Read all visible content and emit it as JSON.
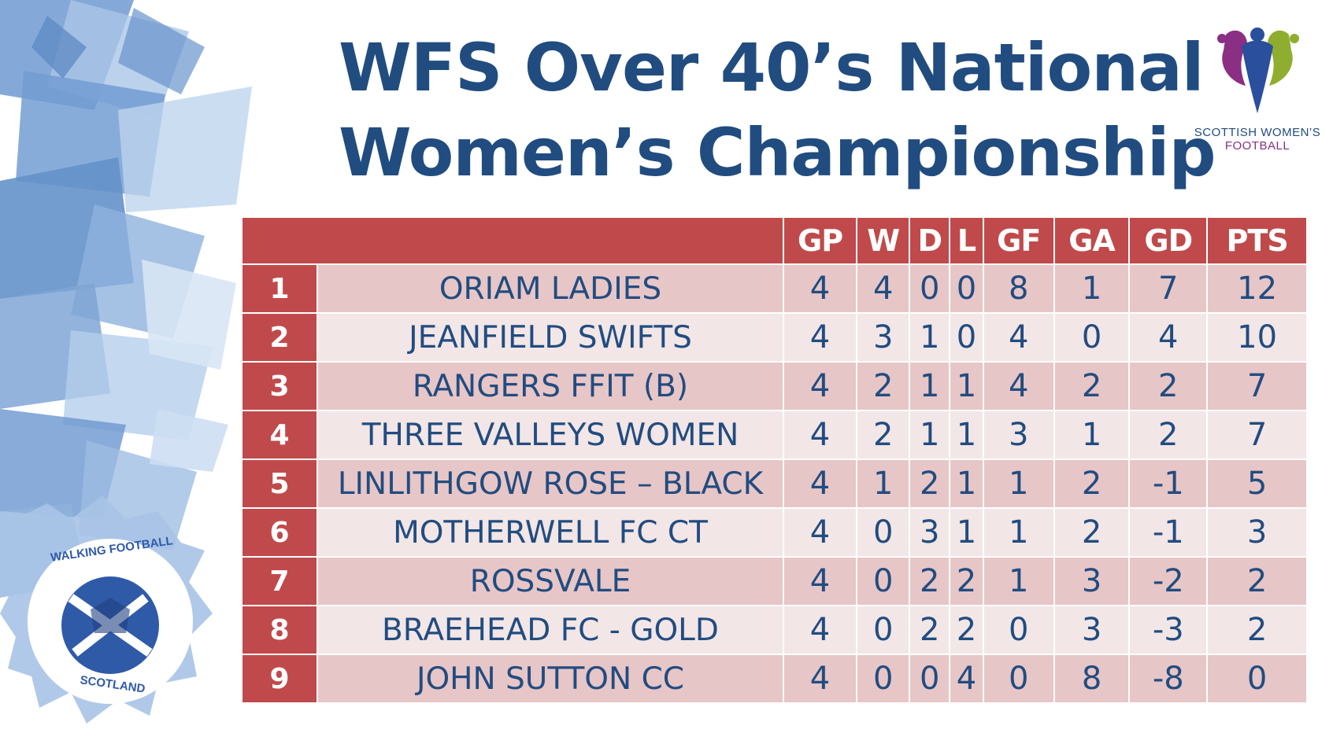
{
  "title": {
    "line1": "WFS Over 40’s National",
    "line2": "Women’s Championship"
  },
  "logos": {
    "swf": {
      "line1": "SCOTTISH WOMEN’S",
      "line2": "FOOTBALL"
    },
    "walking_football": {
      "top": "WALKING FOOTBALL",
      "bottom": "SCOTLAND"
    }
  },
  "colors": {
    "header": "#c04a4b",
    "title": "#214c80",
    "row_dark": "#e7c6c7",
    "row_light": "#f2e6e6"
  },
  "table": {
    "columns": [
      "GP",
      "W",
      "D",
      "L",
      "GF",
      "GA",
      "GD",
      "PTS"
    ],
    "rows": [
      {
        "pos": "1",
        "team": "ORIAM LADIES",
        "gp": "4",
        "w": "4",
        "d": "0",
        "l": "0",
        "gf": "8",
        "ga": "1",
        "gd": "7",
        "pts": "12"
      },
      {
        "pos": "2",
        "team": "JEANFIELD SWIFTS",
        "gp": "4",
        "w": "3",
        "d": "1",
        "l": "0",
        "gf": "4",
        "ga": "0",
        "gd": "4",
        "pts": "10"
      },
      {
        "pos": "3",
        "team": "RANGERS FFIT (B)",
        "gp": "4",
        "w": "2",
        "d": "1",
        "l": "1",
        "gf": "4",
        "ga": "2",
        "gd": "2",
        "pts": "7"
      },
      {
        "pos": "4",
        "team": "THREE VALLEYS WOMEN",
        "gp": "4",
        "w": "2",
        "d": "1",
        "l": "1",
        "gf": "3",
        "ga": "1",
        "gd": "2",
        "pts": "7"
      },
      {
        "pos": "5",
        "team": "LINLITHGOW ROSE – BLACK",
        "gp": "4",
        "w": "1",
        "d": "2",
        "l": "1",
        "gf": "1",
        "ga": "2",
        "gd": "-1",
        "pts": "5"
      },
      {
        "pos": "6",
        "team": "MOTHERWELL FC CT",
        "gp": "4",
        "w": "0",
        "d": "3",
        "l": "1",
        "gf": "1",
        "ga": "2",
        "gd": "-1",
        "pts": "3"
      },
      {
        "pos": "7",
        "team": "ROSSVALE",
        "gp": "4",
        "w": "0",
        "d": "2",
        "l": "2",
        "gf": "1",
        "ga": "3",
        "gd": "-2",
        "pts": "2"
      },
      {
        "pos": "8",
        "team": "BRAEHEAD FC - GOLD",
        "gp": "4",
        "w": "0",
        "d": "2",
        "l": "2",
        "gf": "0",
        "ga": "3",
        "gd": "-3",
        "pts": "2"
      },
      {
        "pos": "9",
        "team": "JOHN SUTTON CC",
        "gp": "4",
        "w": "0",
        "d": "0",
        "l": "4",
        "gf": "0",
        "ga": "8",
        "gd": "-8",
        "pts": "0"
      }
    ]
  }
}
